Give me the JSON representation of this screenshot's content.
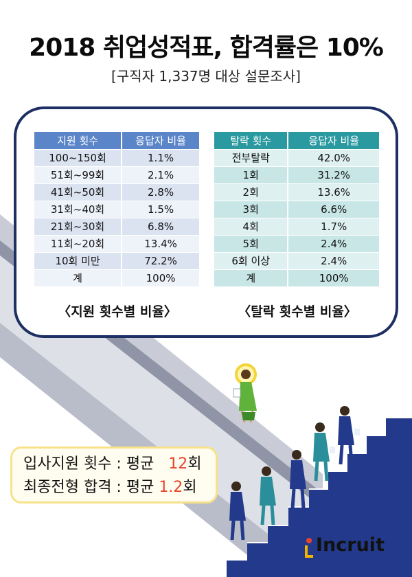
{
  "header": {
    "title": "2018 취업성적표, 합격률은 10%",
    "subtitle": "[구직자 1,337명 대상 설문조사]"
  },
  "tables": {
    "applications": {
      "headers": [
        "지원 횟수",
        "응답자 비율"
      ],
      "rows": [
        [
          "100~150회",
          "1.1%"
        ],
        [
          "51회~99회",
          "2.1%"
        ],
        [
          "41회~50회",
          "2.8%"
        ],
        [
          "31회~40회",
          "1.5%"
        ],
        [
          "21회~30회",
          "6.8%"
        ],
        [
          "11회~20회",
          "13.4%"
        ],
        [
          "10회 미만",
          "72.2%"
        ],
        [
          "계",
          "100%"
        ]
      ],
      "caption": "〈지원 횟수별 비율〉"
    },
    "rejections": {
      "headers": [
        "탈락 횟수",
        "응답자 비율"
      ],
      "rows": [
        [
          "전부탈락",
          "42.0%"
        ],
        [
          "1회",
          "31.2%"
        ],
        [
          "2회",
          "13.6%"
        ],
        [
          "3회",
          "6.6%"
        ],
        [
          "4회",
          "1.7%"
        ],
        [
          "5회",
          "2.4%"
        ],
        [
          "6회 이상",
          "2.4%"
        ],
        [
          "계",
          "100%"
        ]
      ],
      "caption": "〈탈락 횟수별 비율〉"
    }
  },
  "summary": {
    "line1_label": "입사지원 횟수 : 평균",
    "line1_value": "12",
    "line1_unit": "회",
    "line2_label": "최종전형 합격 : 평균",
    "line2_value": "1.2",
    "line2_unit": "회"
  },
  "brand": {
    "logo_text": "Incruit",
    "accent": "#e8452c",
    "navy": "#1e2f63",
    "stair_blue": "#233a8c"
  }
}
